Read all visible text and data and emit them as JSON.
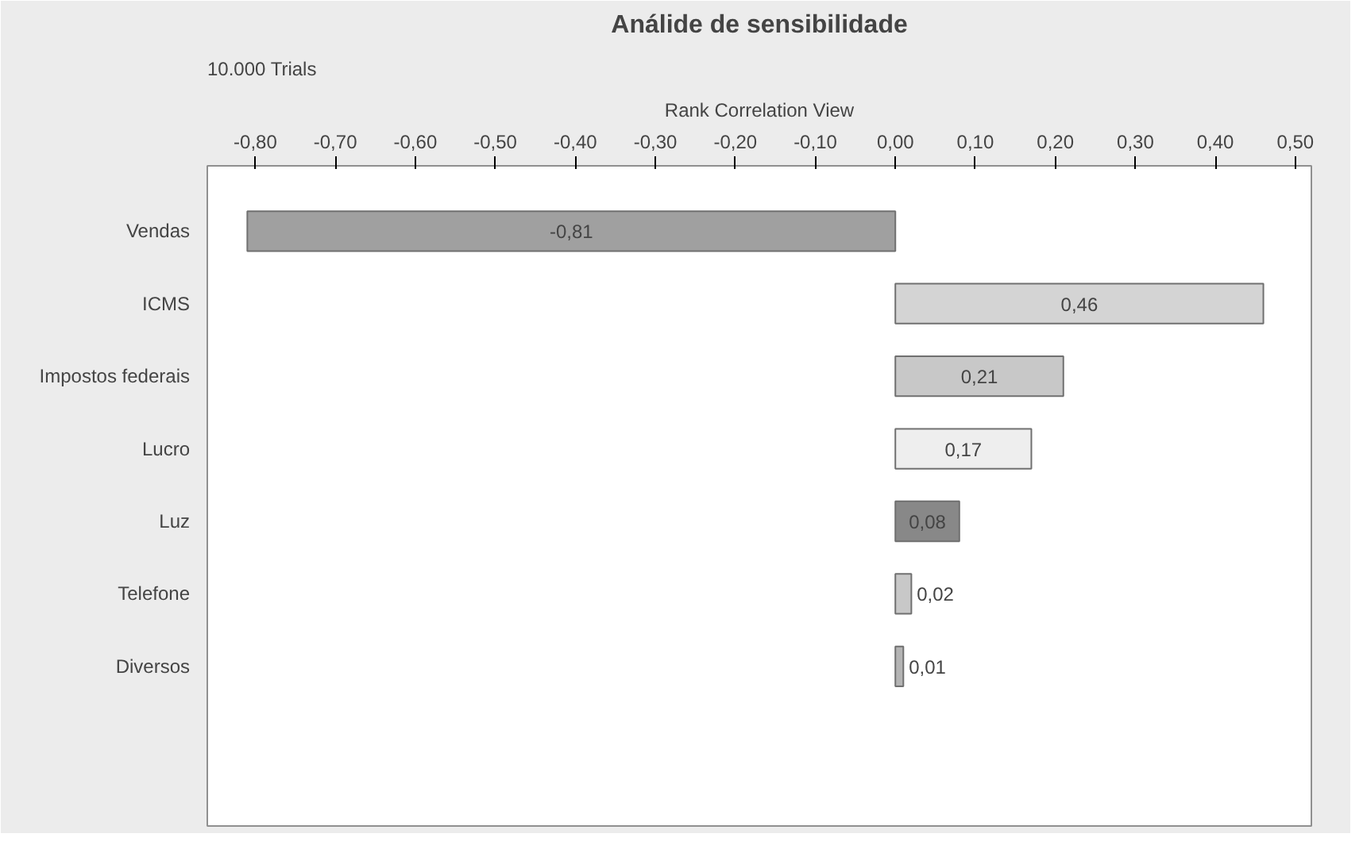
{
  "chart_data": {
    "type": "bar",
    "orientation": "horizontal",
    "title": "Análide de sensibilidade",
    "annotations": [
      "10.000 Trials",
      "Rank Correlation View"
    ],
    "categories": [
      "Vendas",
      "ICMS",
      "Impostos federais",
      "Lucro",
      "Luz",
      "Telefone",
      "Diversos"
    ],
    "values": [
      -0.81,
      0.46,
      0.21,
      0.17,
      0.08,
      0.02,
      0.01
    ],
    "value_labels": [
      "-0,81",
      "0,46",
      "0,21",
      "0,17",
      "0,08",
      "0,02",
      "0,01"
    ],
    "colors": [
      "#a0a0a0",
      "#d4d4d4",
      "#c8c8c8",
      "#eeeeee",
      "#888888",
      "#c8c8c8",
      "#b4b4b4"
    ],
    "xlim": [
      -0.86,
      0.52
    ],
    "xticks": [
      {
        "value": -0.8,
        "label": "-0,80"
      },
      {
        "value": -0.7,
        "label": "-0,70"
      },
      {
        "value": -0.6,
        "label": "-0,60"
      },
      {
        "value": -0.5,
        "label": "-0,50"
      },
      {
        "value": -0.4,
        "label": "-0,40"
      },
      {
        "value": -0.3,
        "label": "-0,30"
      },
      {
        "value": -0.2,
        "label": "-0,20"
      },
      {
        "value": -0.1,
        "label": "-0,10"
      },
      {
        "value": 0,
        "label": "0,00"
      },
      {
        "value": 0.1,
        "label": "0,10"
      },
      {
        "value": 0.2,
        "label": "0,20"
      },
      {
        "value": 0.3,
        "label": "0,30"
      },
      {
        "value": 0.4,
        "label": "0,40"
      },
      {
        "value": 0.5,
        "label": "0,50"
      }
    ],
    "grid": false
  }
}
